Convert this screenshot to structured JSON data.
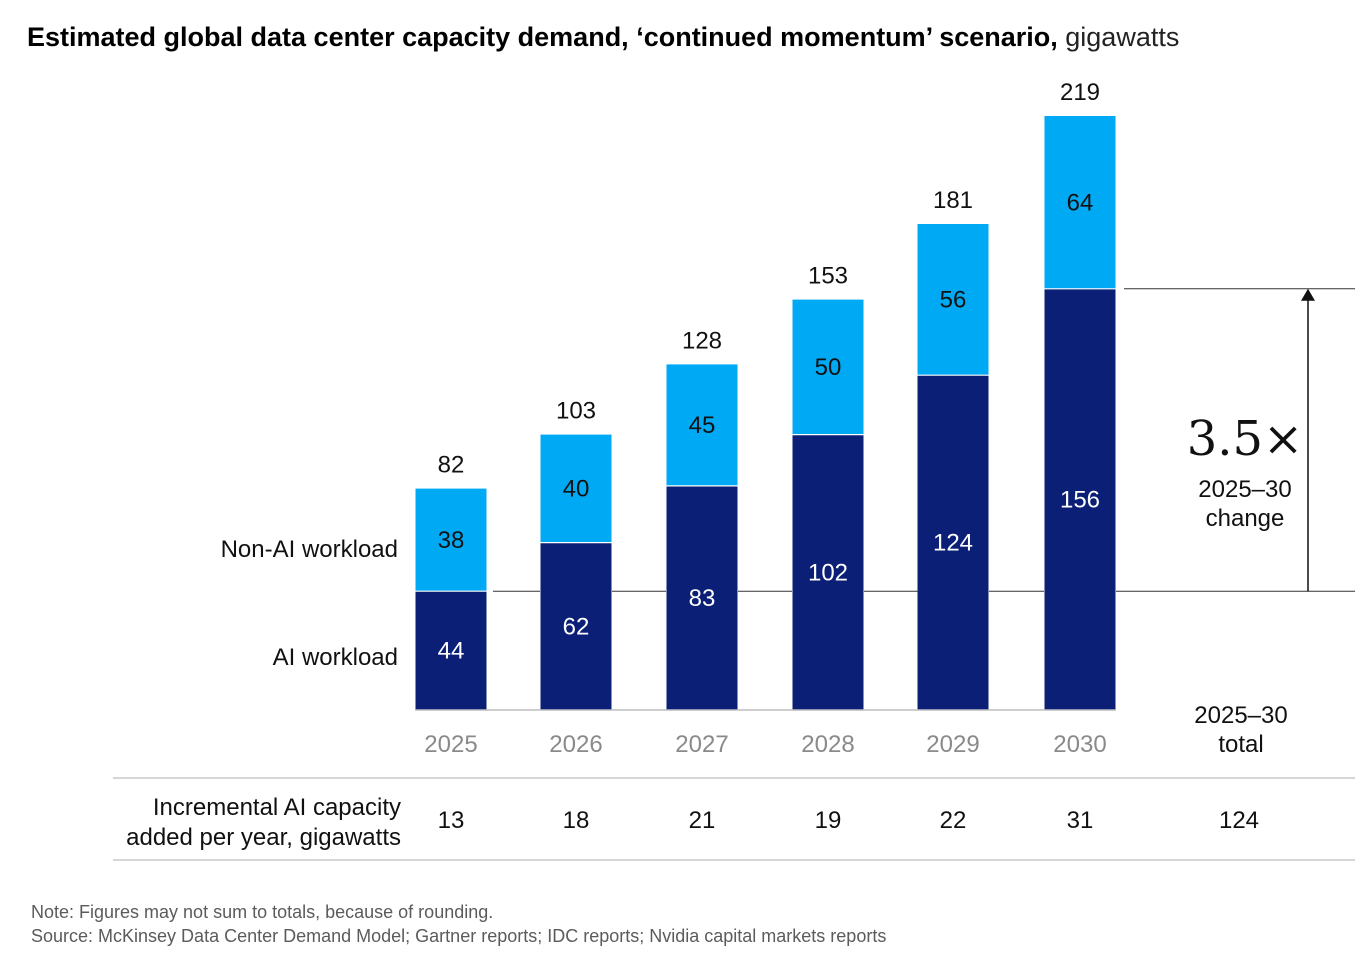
{
  "title": {
    "main": "Estimated global data center capacity demand, ‘continued momentum’ scenario,",
    "unit": "gigawatts"
  },
  "chart_data": {
    "type": "bar",
    "stacked": true,
    "categories": [
      "2025",
      "2026",
      "2027",
      "2028",
      "2029",
      "2030"
    ],
    "series": [
      {
        "name": "AI workload",
        "values": [
          44,
          62,
          83,
          102,
          124,
          156
        ],
        "color": "#0a1f75"
      },
      {
        "name": "Non-AI workload",
        "values": [
          38,
          40,
          45,
          50,
          56,
          64
        ],
        "color": "#00a9f4"
      }
    ],
    "totals": [
      82,
      103,
      128,
      153,
      181,
      219
    ],
    "ylim": [
      0,
      225
    ],
    "grid": false,
    "legend": "left, inline labels",
    "annotation": {
      "value": "3.5×",
      "line1": "2025–30",
      "line2": "change"
    },
    "table": {
      "label_line1": "Incremental AI capacity",
      "label_line2": "added per year, gigawatts",
      "total_header_line1": "2025–30",
      "total_header_line2": "total",
      "values": [
        "13",
        "18",
        "21",
        "19",
        "22",
        "31"
      ],
      "total": "124"
    }
  },
  "notes": {
    "note": "Note: Figures may not sum to totals, because of rounding.",
    "source": "Source: McKinsey Data Center Demand Model; Gartner reports; IDC reports; Nvidia capital markets reports"
  }
}
